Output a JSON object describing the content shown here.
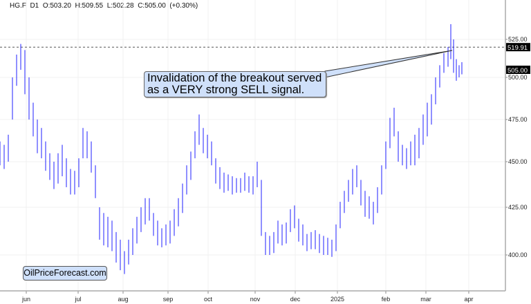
{
  "header": {
    "symbol": "HG.F",
    "timeframe": "D1",
    "open": "O:503.20",
    "high": "H:509.55",
    "low": "L:502.28",
    "close": "C:505.00",
    "change": "(+0.30%)"
  },
  "annotation": {
    "line1": "Invalidation of the breakout served",
    "line2": "as a VERY strong SELL signal."
  },
  "watermark": "OilPriceForecast.com",
  "chart_data": {
    "type": "ohlc-bar",
    "series_color": "#1a1aff",
    "y_ticks": [
      400,
      425,
      450,
      475,
      500,
      525
    ],
    "y_tick_labels": [
      "400.00",
      "425.00",
      "450.00",
      "475.00",
      "500.00",
      "525.00"
    ],
    "x_tick_labels": [
      "jun",
      "jul",
      "aug",
      "sep",
      "oct",
      "nov",
      "dec",
      "2025",
      "feb",
      "mar",
      "apr"
    ],
    "reference_line": {
      "value": 519.91,
      "label": "519.91",
      "style": "dashed"
    },
    "last_price": {
      "value": 505.0,
      "label": "505.00"
    },
    "grid": true,
    "bars_low_high": [
      [
        448,
        462
      ],
      [
        446,
        460
      ],
      [
        450,
        466
      ],
      [
        475,
        500
      ],
      [
        495,
        515
      ],
      [
        505,
        522
      ],
      [
        490,
        518
      ],
      [
        475,
        500
      ],
      [
        465,
        485
      ],
      [
        455,
        475
      ],
      [
        452,
        470
      ],
      [
        445,
        462
      ],
      [
        440,
        455
      ],
      [
        435,
        450
      ],
      [
        438,
        455
      ],
      [
        442,
        460
      ],
      [
        436,
        452
      ],
      [
        432,
        446
      ],
      [
        432,
        445
      ],
      [
        436,
        452
      ],
      [
        452,
        470
      ],
      [
        452,
        468
      ],
      [
        444,
        462
      ],
      [
        430,
        448
      ],
      [
        408,
        425
      ],
      [
        405,
        422
      ],
      [
        404,
        420
      ],
      [
        402,
        418
      ],
      [
        396,
        412
      ],
      [
        392,
        408
      ],
      [
        390,
        402
      ],
      [
        395,
        408
      ],
      [
        400,
        414
      ],
      [
        406,
        420
      ],
      [
        412,
        425
      ],
      [
        416,
        430
      ],
      [
        418,
        430
      ],
      [
        410,
        422
      ],
      [
        405,
        418
      ],
      [
        404,
        414
      ],
      [
        405,
        416
      ],
      [
        406,
        418
      ],
      [
        410,
        424
      ],
      [
        415,
        430
      ],
      [
        422,
        438
      ],
      [
        432,
        448
      ],
      [
        440,
        456
      ],
      [
        452,
        468
      ],
      [
        460,
        478
      ],
      [
        455,
        470
      ],
      [
        452,
        466
      ],
      [
        448,
        462
      ],
      [
        438,
        452
      ],
      [
        435,
        447
      ],
      [
        433,
        444
      ],
      [
        434,
        443
      ],
      [
        432,
        442
      ],
      [
        433,
        441
      ],
      [
        433,
        441
      ],
      [
        434,
        444
      ],
      [
        433,
        442
      ],
      [
        432,
        442
      ],
      [
        436,
        450
      ],
      [
        410,
        440
      ],
      [
        400,
        412
      ],
      [
        400,
        410
      ],
      [
        401,
        412
      ],
      [
        406,
        418
      ],
      [
        405,
        416
      ],
      [
        406,
        417
      ],
      [
        412,
        424
      ],
      [
        414,
        426
      ],
      [
        407,
        419
      ],
      [
        405,
        416
      ],
      [
        402,
        411
      ],
      [
        403,
        412
      ],
      [
        403,
        413
      ],
      [
        401,
        411
      ],
      [
        400,
        410
      ],
      [
        400,
        409
      ],
      [
        399,
        408
      ],
      [
        402,
        416
      ],
      [
        414,
        428
      ],
      [
        422,
        434
      ],
      [
        428,
        440
      ],
      [
        432,
        446
      ],
      [
        436,
        448
      ],
      [
        426,
        440
      ],
      [
        420,
        434
      ],
      [
        419,
        431
      ],
      [
        416,
        428
      ],
      [
        422,
        436
      ],
      [
        432,
        448
      ],
      [
        446,
        462
      ],
      [
        458,
        476
      ],
      [
        465,
        482
      ],
      [
        450,
        468
      ],
      [
        448,
        460
      ],
      [
        446,
        458
      ],
      [
        448,
        462
      ],
      [
        448,
        466
      ],
      [
        452,
        470
      ],
      [
        460,
        478
      ],
      [
        465,
        485
      ],
      [
        472,
        490
      ],
      [
        484,
        500
      ],
      [
        494,
        508
      ],
      [
        503,
        516
      ],
      [
        507,
        520
      ],
      [
        512,
        535
      ],
      [
        503,
        525
      ],
      [
        498,
        512
      ],
      [
        500,
        508
      ],
      [
        502,
        510
      ]
    ]
  }
}
